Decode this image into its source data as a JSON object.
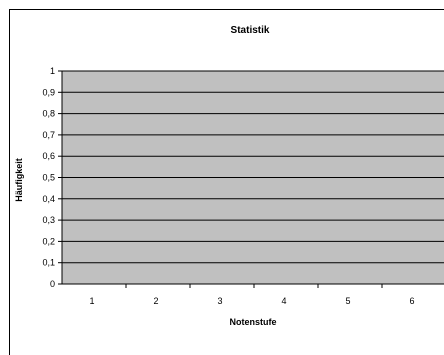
{
  "chart_data": {
    "type": "bar",
    "title": "Statistik",
    "xlabel": "Notenstufe",
    "ylabel": "Häufigkeit",
    "categories": [
      "1",
      "2",
      "3",
      "4",
      "5",
      "6"
    ],
    "series": [
      {
        "values": [
          0,
          0,
          0,
          0,
          0,
          0
        ]
      }
    ],
    "ylim": [
      0,
      1
    ],
    "yticks": [
      "0",
      "0,1",
      "0,2",
      "0,3",
      "0,4",
      "0,5",
      "0,6",
      "0,7",
      "0,8",
      "0,9",
      "1"
    ],
    "grid": true,
    "legend": "none",
    "colors": {
      "plot_background": "#c0c0c0",
      "gridline": "#000000",
      "bar": "#9999ff"
    }
  }
}
